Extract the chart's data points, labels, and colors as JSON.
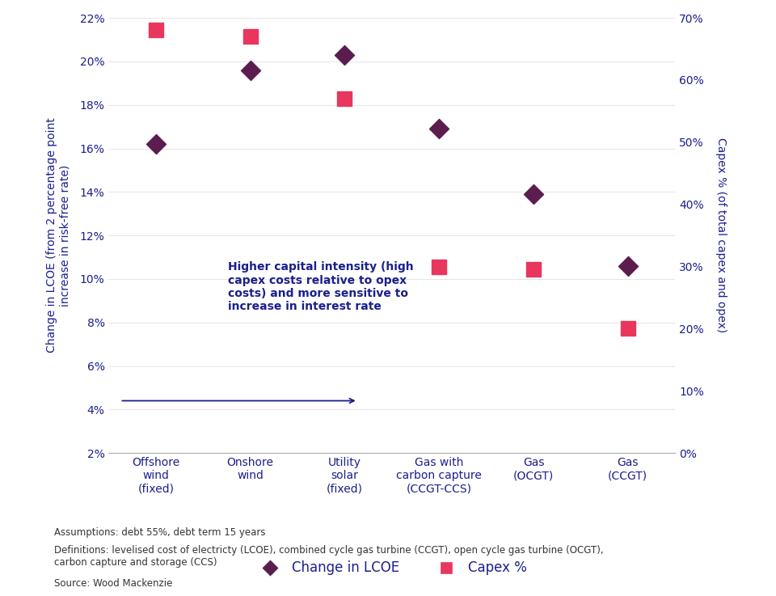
{
  "categories_display": [
    "Offshore\nwind\n(fixed)",
    "Onshore\nwind",
    "Utility\nsolar\n(fixed)",
    "Gas with\ncarbon capture\n(CCGT-CCS)",
    "Gas\n(OCGT)",
    "Gas\n(CCGT)"
  ],
  "lcoe_values": [
    16.2,
    19.6,
    20.3,
    16.9,
    13.9,
    10.6
  ],
  "capex_values": [
    68.0,
    67.0,
    57.0,
    30.0,
    29.5,
    20.0
  ],
  "diamond_color": "#5B1D4E",
  "square_color": "#E8365D",
  "text_color": "#1A1F8C",
  "annotation_text": "Higher capital intensity (high\ncapex costs relative to opex\ncosts) and more sensitive to\nincrease in interest rate",
  "ylabel_left": "Change in LCOE (from 2 percentage point\nincrease in risk-free rate)",
  "ylabel_right": "Capex % (of total capex and opex)",
  "ylim_left": [
    2,
    22
  ],
  "ylim_right": [
    0,
    70
  ],
  "yticks_left": [
    2,
    4,
    6,
    8,
    10,
    12,
    14,
    16,
    18,
    20,
    22
  ],
  "yticks_right": [
    0,
    10,
    20,
    30,
    40,
    50,
    60,
    70
  ],
  "legend_lcoe": "Change in LCOE",
  "legend_capex": "Capex %",
  "footnote1": "Assumptions: debt 55%, debt term 15 years",
  "footnote2": "Definitions: levelised cost of electricty (LCOE), combined cycle gas turbine (CCGT), open cycle gas turbine (OCGT),\ncarbon capture and storage (CCS)",
  "footnote3": "Source: Wood Mackenzie",
  "background_color": "#FFFFFF",
  "spine_color": "#AAAAAA",
  "grid_color": "#E0E0E0"
}
